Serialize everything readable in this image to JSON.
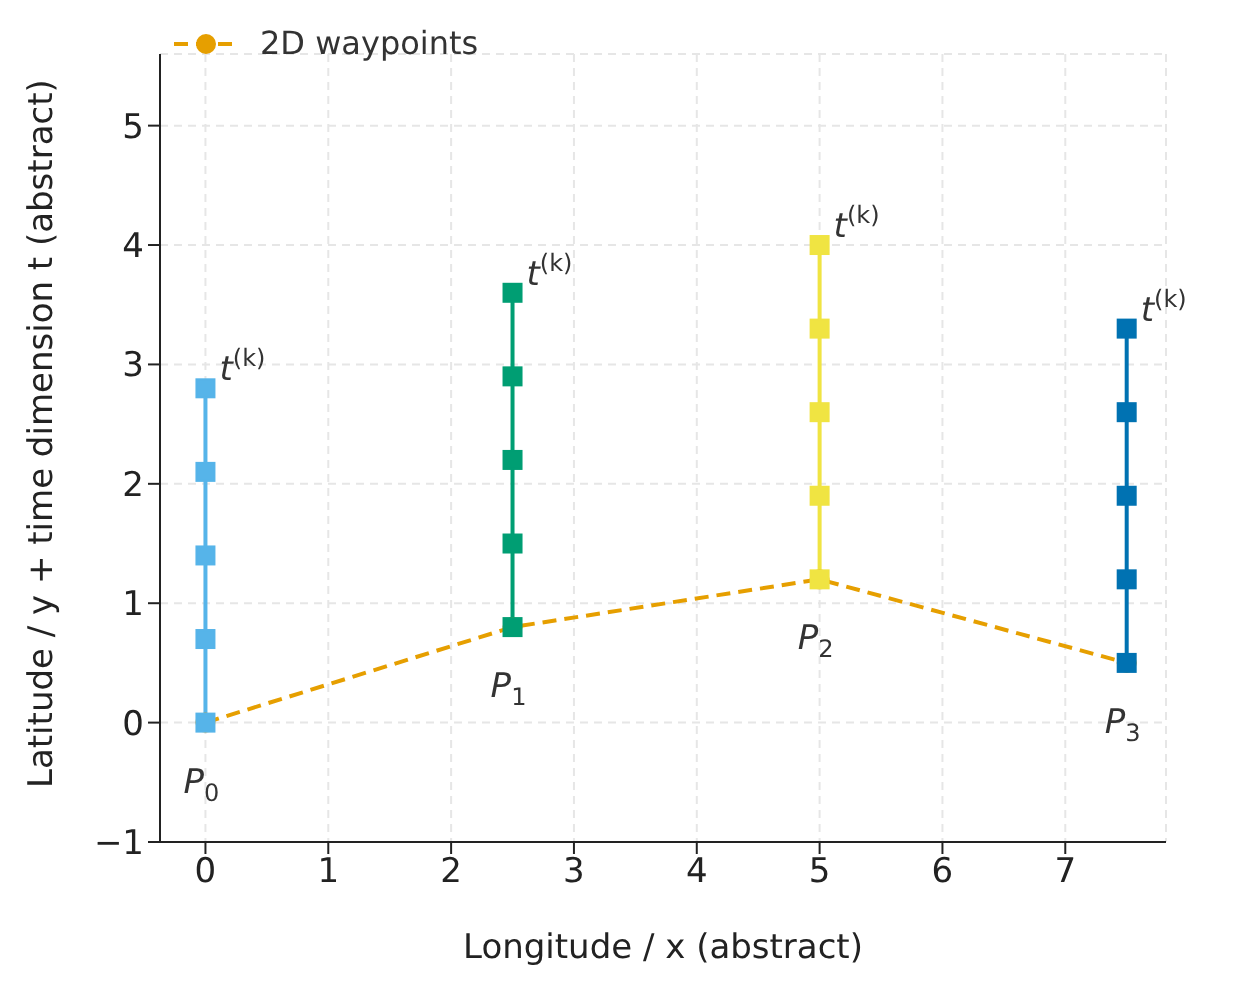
{
  "chart_data": {
    "type": "line",
    "xlabel": "Longitude / x (abstract)",
    "ylabel": "Latitude / y + time dimension t (abstract)",
    "xlim": [
      -0.37,
      7.82
    ],
    "xticks": [
      0,
      1,
      2,
      3,
      4,
      5,
      6,
      7
    ],
    "ylim": [
      -1,
      5.6
    ],
    "yticks": [
      -1,
      0,
      1,
      2,
      3,
      4,
      5
    ],
    "grid": true,
    "legend": "top left",
    "series": [
      {
        "name": "2D waypoints",
        "color": "#e69f00",
        "marker": "circle",
        "line_style": "dashed",
        "x": [
          0,
          2.5,
          5,
          7.5
        ],
        "values": [
          0,
          0.8,
          1.2,
          0.5
        ]
      },
      {
        "color": "#56b4e9",
        "marker": "square",
        "line_style": "solid",
        "x": [
          0,
          0,
          0,
          0,
          0
        ],
        "values": [
          0,
          0.7,
          1.4,
          2.1,
          2.8
        ]
      },
      {
        "color": "#009e73",
        "marker": "square",
        "line_style": "solid",
        "x": [
          2.5,
          2.5,
          2.5,
          2.5,
          2.5
        ],
        "values": [
          0.8,
          1.5,
          2.2,
          2.9,
          3.6
        ]
      },
      {
        "color": "#f0e442",
        "marker": "square",
        "line_style": "solid",
        "x": [
          5,
          5,
          5,
          5,
          5
        ],
        "values": [
          1.2,
          1.9,
          2.6,
          3.3,
          4.0
        ]
      },
      {
        "color": "#0072b2",
        "marker": "square",
        "line_style": "solid",
        "x": [
          7.5,
          7.5,
          7.5,
          7.5,
          7.5
        ],
        "values": [
          0.5,
          1.2,
          1.9,
          2.6,
          3.3
        ]
      }
    ],
    "annotations": [
      {
        "text": "P$_{0}$",
        "x": 0,
        "y": 0
      },
      {
        "text": "P$_{1}$",
        "x": 2.5,
        "y": 0.8
      },
      {
        "text": "P$_{2}$",
        "x": 5,
        "y": 1.2
      },
      {
        "text": "P$_{3}$",
        "x": 7.5,
        "y": 0.5
      },
      {
        "text": "t$^{(k)}$",
        "x": 0,
        "y": 2.8
      },
      {
        "text": "t$^{(k)}$",
        "x": 2.5,
        "y": 3.6
      },
      {
        "text": "t$^{(k)}$",
        "x": 5,
        "y": 4.0
      },
      {
        "text": "t$^{(k)}$",
        "x": 7.5,
        "y": 3.3
      }
    ]
  }
}
